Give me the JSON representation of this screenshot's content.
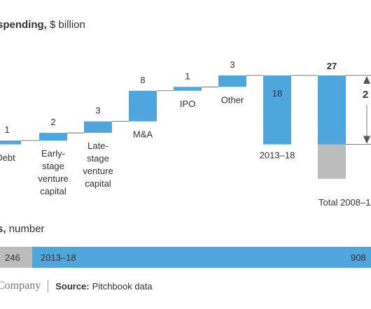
{
  "chart_data": [
    {
      "type": "bar",
      "subtype": "waterfall",
      "title_bold": "spending,",
      "title_unit": "$ billion",
      "categories": [
        "Debt",
        "Early-stage venture capital",
        "Late-stage venture capital",
        "M&A",
        "IPO",
        "Other",
        "2013–18",
        "Total 2008–1"
      ],
      "category_lines": [
        [
          "Debt"
        ],
        [
          "Early-",
          "stage",
          "venture",
          "capital"
        ],
        [
          "Late-",
          "stage",
          "venture",
          "capital"
        ],
        [
          "M&A"
        ],
        [
          "IPO"
        ],
        [
          "Other"
        ],
        [
          "2013–18"
        ],
        [
          "Total 2008–1"
        ]
      ],
      "values": [
        1,
        2,
        3,
        8,
        1,
        3,
        18,
        27
      ],
      "value_labels": [
        "1",
        "2",
        "3",
        "8",
        "1",
        "3",
        "18",
        "27"
      ],
      "total_segments": [
        {
          "period": "2013–18",
          "value": 18
        },
        {
          "value": 9
        }
      ],
      "annotation": "2",
      "colors": {
        "bar": "#4fa6dc",
        "gray": "#bcbcbc",
        "connector": "#555555",
        "text": "#333333"
      }
    },
    {
      "type": "bar",
      "subtype": "stacked-horizontal",
      "title_bold": "s,",
      "title_unit": "number",
      "segments": [
        {
          "label": "",
          "value": 246,
          "value_label": "246",
          "color": "#bcbcbc"
        },
        {
          "label": "2013–18",
          "value": 908,
          "value_label": "908",
          "color": "#4fa6dc"
        }
      ]
    }
  ],
  "footer": {
    "brand": "Company",
    "source_label": "Source:",
    "source_text": "Pitchbook data"
  }
}
